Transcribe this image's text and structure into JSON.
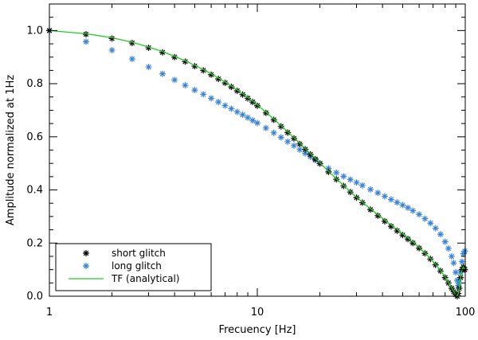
{
  "chart_data": {
    "type": "scatter",
    "title": "",
    "xlabel": "Frecuency [Hz]",
    "ylabel": "Amplitude normalized at 1Hz",
    "xscale": "log",
    "xlim": [
      1,
      100
    ],
    "ylim": [
      0.0,
      1.1
    ],
    "x_ticks": [
      1,
      10,
      100
    ],
    "x_tick_labels": [
      "1",
      "10",
      "100"
    ],
    "y_ticks": [
      0.0,
      0.2,
      0.4,
      0.6,
      0.8,
      1.0
    ],
    "y_tick_labels": [
      "0.0",
      "0.2",
      "0.4",
      "0.6",
      "0.8",
      "1.0"
    ],
    "legend_position": "bottom-left",
    "series": [
      {
        "name": "short glitch",
        "style": "asterisk",
        "color": "#000000",
        "x": [
          1.0,
          1.5,
          2.0,
          2.5,
          3.0,
          3.5,
          4.0,
          4.5,
          5.0,
          5.5,
          6.0,
          6.5,
          7.0,
          7.5,
          8.0,
          8.5,
          9.0,
          9.5,
          10.0,
          11.0,
          12.0,
          13.0,
          14.0,
          15.0,
          16.0,
          17.0,
          18.0,
          19.0,
          20.0,
          22.0,
          24.0,
          26.0,
          28.0,
          30.0,
          32.0,
          35.0,
          38.0,
          41.0,
          44.0,
          47.0,
          50.0,
          53.0,
          56.0,
          60.0,
          64.0,
          68.0,
          72.0,
          76.0,
          80.0,
          83.0,
          86.0,
          88.0,
          90.0,
          91.5,
          92.5,
          93.5,
          95.0,
          96.5,
          98.0,
          99.5
        ],
        "y": [
          1.0,
          0.986,
          0.97,
          0.953,
          0.935,
          0.918,
          0.9,
          0.883,
          0.866,
          0.85,
          0.834,
          0.818,
          0.803,
          0.788,
          0.773,
          0.759,
          0.745,
          0.731,
          0.717,
          0.69,
          0.664,
          0.639,
          0.616,
          0.594,
          0.573,
          0.553,
          0.534,
          0.516,
          0.499,
          0.468,
          0.44,
          0.415,
          0.392,
          0.371,
          0.352,
          0.326,
          0.303,
          0.282,
          0.263,
          0.246,
          0.23,
          0.215,
          0.2,
          0.181,
          0.161,
          0.14,
          0.118,
          0.095,
          0.07,
          0.05,
          0.03,
          0.017,
          0.006,
          0.0,
          0.01,
          0.03,
          0.07,
          0.1,
          0.11,
          0.1
        ]
      },
      {
        "name": "long glitch",
        "style": "asterisk",
        "color": "#3a83d6",
        "x": [
          1.0,
          1.5,
          2.0,
          2.5,
          3.0,
          3.5,
          4.0,
          4.5,
          5.0,
          5.5,
          6.0,
          6.5,
          7.0,
          7.5,
          8.0,
          8.5,
          9.0,
          9.5,
          10.0,
          11.0,
          12.0,
          13.0,
          14.0,
          15.0,
          16.0,
          17.0,
          18.0,
          19.0,
          20.0,
          22.0,
          24.0,
          26.0,
          28.0,
          30.0,
          32.0,
          35.0,
          38.0,
          41.0,
          44.0,
          47.0,
          50.0,
          53.0,
          56.0,
          60.0,
          64.0,
          68.0,
          72.0,
          76.0,
          80.0,
          83.0,
          86.0,
          88.0,
          90.0,
          91.5,
          92.5,
          93.5,
          95.0,
          96.5,
          98.0,
          99.5
        ],
        "y": [
          1.0,
          0.958,
          0.926,
          0.893,
          0.863,
          0.837,
          0.814,
          0.794,
          0.776,
          0.76,
          0.745,
          0.731,
          0.718,
          0.706,
          0.694,
          0.683,
          0.672,
          0.662,
          0.652,
          0.633,
          0.615,
          0.598,
          0.582,
          0.567,
          0.552,
          0.538,
          0.525,
          0.512,
          0.5,
          0.481,
          0.465,
          0.451,
          0.439,
          0.428,
          0.417,
          0.402,
          0.389,
          0.376,
          0.364,
          0.353,
          0.343,
          0.333,
          0.322,
          0.308,
          0.292,
          0.275,
          0.256,
          0.233,
          0.205,
          0.18,
          0.15,
          0.125,
          0.09,
          0.06,
          0.04,
          0.05,
          0.09,
          0.13,
          0.16,
          0.17
        ]
      },
      {
        "name": "TF (analytical)",
        "style": "line",
        "color": "#22cc22",
        "x": [
          1.0,
          1.5,
          2.0,
          2.5,
          3.0,
          3.5,
          4.0,
          4.5,
          5.0,
          5.5,
          6.0,
          6.5,
          7.0,
          7.5,
          8.0,
          8.5,
          9.0,
          9.5,
          10.0,
          11.0,
          12.0,
          13.0,
          14.0,
          15.0,
          16.0,
          17.0,
          18.0,
          19.0,
          20.0,
          22.0,
          24.0,
          26.0,
          28.0,
          30.0,
          32.0,
          35.0,
          38.0,
          41.0,
          44.0,
          47.0,
          50.0,
          53.0,
          56.0,
          60.0,
          64.0,
          68.0,
          72.0,
          76.0,
          80.0,
          83.0,
          86.0,
          88.0,
          90.0,
          91.5,
          92.5,
          93.5,
          95.0,
          96.5,
          98.0,
          99.5
        ],
        "y": [
          1.0,
          0.988,
          0.973,
          0.956,
          0.938,
          0.921,
          0.903,
          0.886,
          0.869,
          0.853,
          0.837,
          0.821,
          0.806,
          0.791,
          0.776,
          0.762,
          0.748,
          0.734,
          0.72,
          0.693,
          0.667,
          0.642,
          0.619,
          0.597,
          0.576,
          0.556,
          0.537,
          0.519,
          0.502,
          0.47,
          0.442,
          0.417,
          0.394,
          0.373,
          0.354,
          0.329,
          0.307,
          0.287,
          0.268,
          0.251,
          0.235,
          0.219,
          0.204,
          0.184,
          0.163,
          0.142,
          0.12,
          0.097,
          0.072,
          0.052,
          0.032,
          0.018,
          0.006,
          0.0,
          0.01,
          0.03,
          0.07,
          0.1,
          0.11,
          0.1
        ]
      }
    ]
  }
}
